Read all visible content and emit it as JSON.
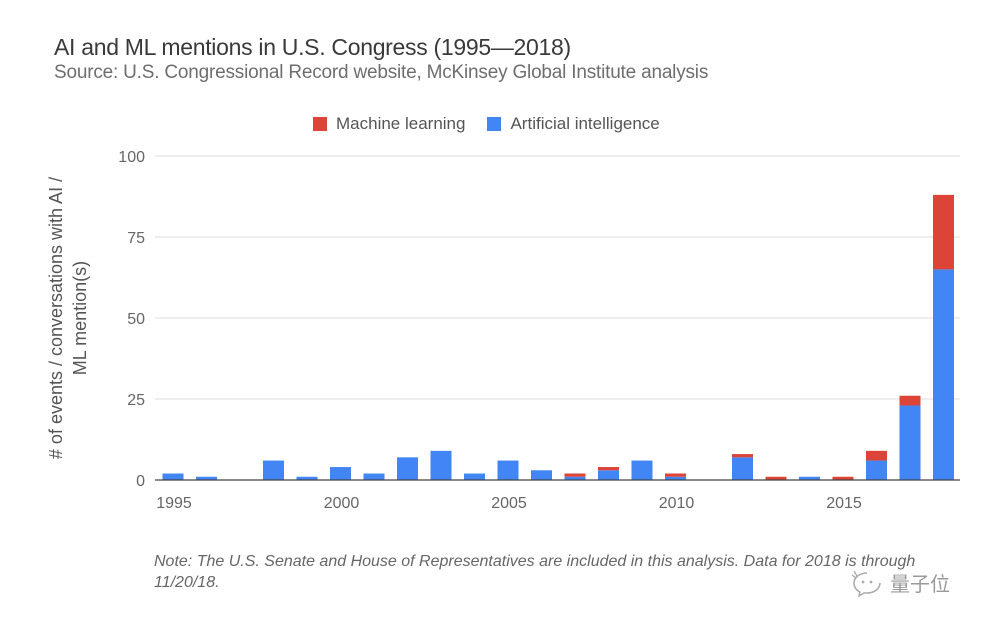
{
  "chart_data": {
    "type": "bar",
    "stacked": true,
    "title": "AI and ML mentions in U.S. Congress (1995—2018)",
    "subtitle": "Source: U.S. Congressional Record website, McKinsey Global Institute analysis",
    "xlabel": "",
    "ylabel_lines": [
      "# of events / conversations with AI /",
      "ML mention(s)"
    ],
    "ylim": [
      0,
      100
    ],
    "yticks": [
      0,
      25,
      50,
      75,
      100
    ],
    "xticks": [
      "1995",
      "2000",
      "2005",
      "2010",
      "2015"
    ],
    "grid": true,
    "legend_position": "top-center",
    "categories": [
      1995,
      1996,
      1997,
      1998,
      1999,
      2000,
      2001,
      2002,
      2003,
      2004,
      2005,
      2006,
      2007,
      2008,
      2009,
      2010,
      2011,
      2012,
      2013,
      2014,
      2015,
      2016,
      2017,
      2018
    ],
    "series": [
      {
        "name": "Artificial intelligence",
        "color": "#4285f4",
        "values": [
          2,
          1,
          0,
          6,
          1,
          4,
          2,
          7,
          9,
          2,
          6,
          3,
          1,
          3,
          6,
          1,
          0,
          7,
          0,
          1,
          0,
          6,
          23,
          65
        ]
      },
      {
        "name": "Machine learning",
        "color": "#db4437",
        "values": [
          0,
          0,
          0,
          0,
          0,
          0,
          0,
          0,
          0,
          0,
          0,
          0,
          1,
          1,
          0,
          1,
          0,
          1,
          1,
          0,
          1,
          3,
          3,
          23
        ]
      }
    ],
    "legend": [
      {
        "label": "Machine learning",
        "color": "#db4437"
      },
      {
        "label": "Artificial intelligence",
        "color": "#4285f4"
      }
    ],
    "note": "Note: The U.S. Senate and House of Representatives are included in this analysis. Data for 2018 is through 11/20/18."
  },
  "watermark": {
    "text": "量子位",
    "icon": "wechat-icon"
  }
}
